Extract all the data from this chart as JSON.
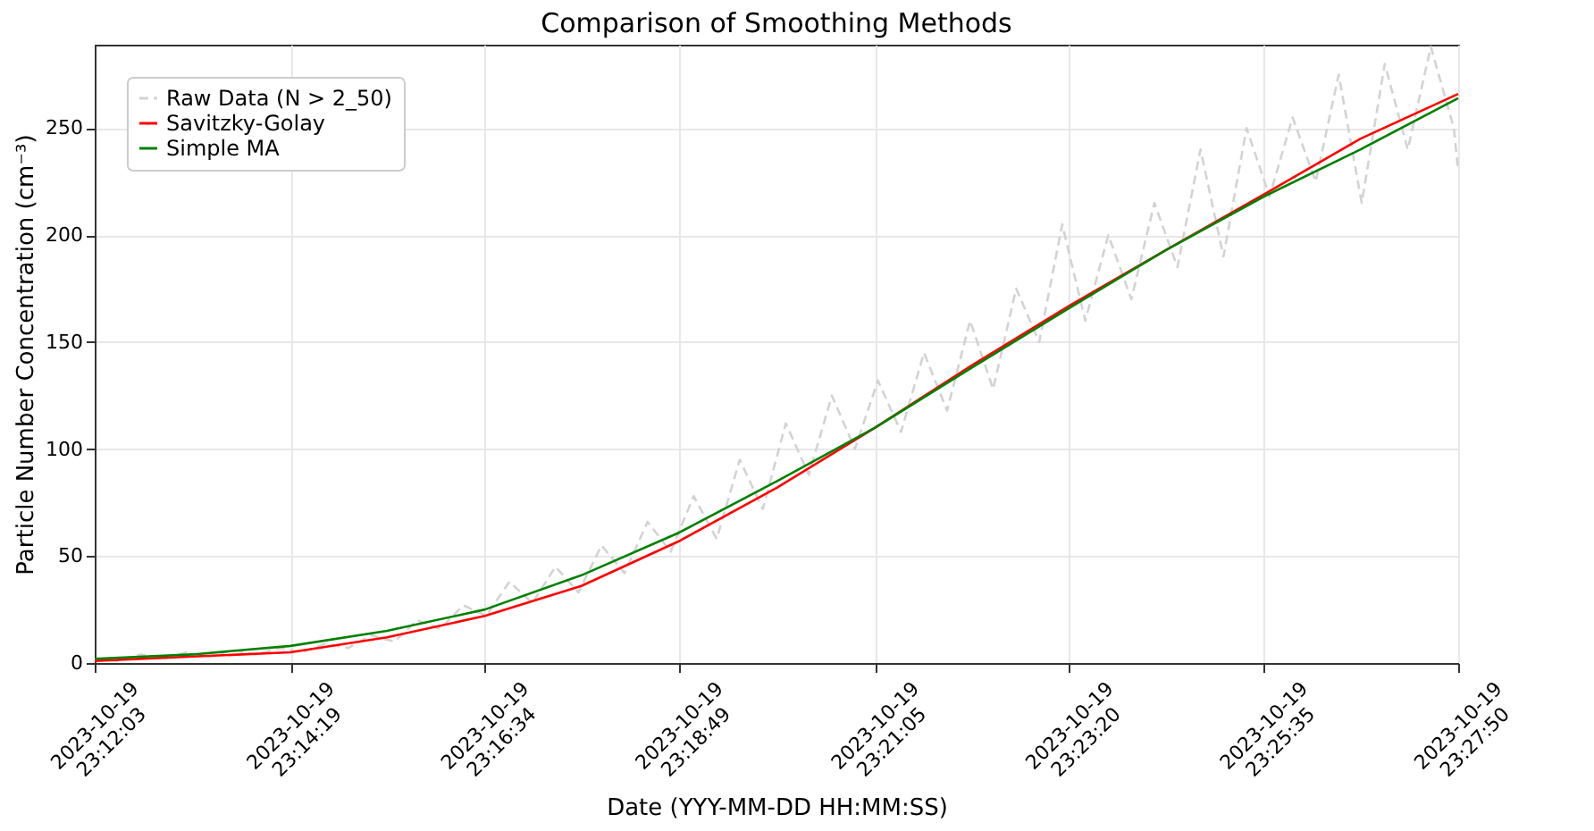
{
  "chart_data": {
    "type": "line",
    "title": "Comparison of Smoothing Methods",
    "xlabel": "Date (YYY-MM-DD HH:MM:SS)",
    "ylabel": "Particle Number Concentration (cm⁻³)",
    "xlim": [
      "2023-10-19T23:12:03",
      "2023-10-19T23:27:50"
    ],
    "xticks": [
      {
        "value": "2023-10-19T23:12:03",
        "label": "2023-10-19 23:12:03"
      },
      {
        "value": "2023-10-19T23:14:19",
        "label": "2023-10-19 23:14:19"
      },
      {
        "value": "2023-10-19T23:16:34",
        "label": "2023-10-19 23:16:34"
      },
      {
        "value": "2023-10-19T23:18:49",
        "label": "2023-10-19 23:18:49"
      },
      {
        "value": "2023-10-19T23:21:05",
        "label": "2023-10-19 23:21:05"
      },
      {
        "value": "2023-10-19T23:23:20",
        "label": "2023-10-19 23:23:20"
      },
      {
        "value": "2023-10-19T23:25:35",
        "label": "2023-10-19 23:25:35"
      },
      {
        "value": "2023-10-19T23:27:50",
        "label": "2023-10-19 23:27:50"
      }
    ],
    "ylim": [
      0,
      289
    ],
    "yticks": [
      0,
      50,
      100,
      150,
      200,
      250
    ],
    "grid": true,
    "legend": "top left",
    "marker": "none",
    "series": [
      {
        "name": "Raw Data (N > 2_50)",
        "color": "#d3d3d3",
        "line_style": "dashed",
        "x": [
          "2023-10-19T23:12:03",
          "2023-10-19T23:12:19",
          "2023-10-19T23:12:35",
          "2023-10-19T23:12:51",
          "2023-10-19T23:13:07",
          "2023-10-19T23:13:23",
          "2023-10-19T23:13:39",
          "2023-10-19T23:13:55",
          "2023-10-19T23:14:11",
          "2023-10-19T23:14:27",
          "2023-10-19T23:14:43",
          "2023-10-19T23:14:59",
          "2023-10-19T23:15:15",
          "2023-10-19T23:15:31",
          "2023-10-19T23:15:47",
          "2023-10-19T23:16:03",
          "2023-10-19T23:16:19",
          "2023-10-19T23:16:35",
          "2023-10-19T23:16:51",
          "2023-10-19T23:17:07",
          "2023-10-19T23:17:23",
          "2023-10-19T23:17:39",
          "2023-10-19T23:17:55",
          "2023-10-19T23:18:11",
          "2023-10-19T23:18:27",
          "2023-10-19T23:18:43",
          "2023-10-19T23:18:59",
          "2023-10-19T23:19:15",
          "2023-10-19T23:19:31",
          "2023-10-19T23:19:47",
          "2023-10-19T23:20:03",
          "2023-10-19T23:20:19",
          "2023-10-19T23:20:35",
          "2023-10-19T23:20:51",
          "2023-10-19T23:21:07",
          "2023-10-19T23:21:23",
          "2023-10-19T23:21:39",
          "2023-10-19T23:21:55",
          "2023-10-19T23:22:11",
          "2023-10-19T23:22:27",
          "2023-10-19T23:22:43",
          "2023-10-19T23:22:59",
          "2023-10-19T23:23:15",
          "2023-10-19T23:23:31",
          "2023-10-19T23:23:47",
          "2023-10-19T23:24:03",
          "2023-10-19T23:24:19",
          "2023-10-19T23:24:35",
          "2023-10-19T23:24:51",
          "2023-10-19T23:25:07",
          "2023-10-19T23:25:23",
          "2023-10-19T23:25:39",
          "2023-10-19T23:25:55",
          "2023-10-19T23:26:11",
          "2023-10-19T23:26:27",
          "2023-10-19T23:26:43",
          "2023-10-19T23:26:59",
          "2023-10-19T23:27:15",
          "2023-10-19T23:27:31",
          "2023-10-19T23:27:47",
          "2023-10-19T23:27:50"
        ],
        "values": [
          2,
          1,
          4,
          2,
          5,
          3,
          6,
          4,
          7,
          5,
          9,
          7,
          13,
          10,
          20,
          16,
          27,
          22,
          38,
          28,
          45,
          33,
          55,
          42,
          66,
          52,
          78,
          58,
          95,
          72,
          112,
          88,
          125,
          100,
          132,
          108,
          145,
          118,
          160,
          128,
          175,
          150,
          205,
          160,
          200,
          170,
          215,
          185,
          240,
          190,
          250,
          218,
          255,
          225,
          275,
          215,
          280,
          240,
          288,
          250,
          230
        ]
      },
      {
        "name": "Savitzky-Golay",
        "color": "#ff0000",
        "line_style": "solid",
        "x": [
          "2023-10-19T23:12:03",
          "2023-10-19T23:13:11",
          "2023-10-19T23:14:19",
          "2023-10-19T23:15:26",
          "2023-10-19T23:16:34",
          "2023-10-19T23:17:41",
          "2023-10-19T23:18:49",
          "2023-10-19T23:19:57",
          "2023-10-19T23:21:05",
          "2023-10-19T23:22:12",
          "2023-10-19T23:23:20",
          "2023-10-19T23:24:27",
          "2023-10-19T23:25:35",
          "2023-10-19T23:26:42",
          "2023-10-19T23:27:50"
        ],
        "values": [
          1,
          3,
          5,
          12,
          22,
          36,
          57,
          82,
          110,
          139,
          167,
          193,
          219,
          245,
          266
        ]
      },
      {
        "name": "Simple MA",
        "color": "#008000",
        "line_style": "solid",
        "x": [
          "2023-10-19T23:12:03",
          "2023-10-19T23:13:11",
          "2023-10-19T23:14:19",
          "2023-10-19T23:15:26",
          "2023-10-19T23:16:34",
          "2023-10-19T23:17:41",
          "2023-10-19T23:18:49",
          "2023-10-19T23:19:57",
          "2023-10-19T23:21:05",
          "2023-10-19T23:22:12",
          "2023-10-19T23:23:20",
          "2023-10-19T23:24:27",
          "2023-10-19T23:25:35",
          "2023-10-19T23:26:42",
          "2023-10-19T23:27:50"
        ],
        "values": [
          2,
          4,
          8,
          15,
          25,
          41,
          61,
          85,
          110,
          138,
          166,
          193,
          218,
          240,
          264
        ]
      }
    ]
  }
}
